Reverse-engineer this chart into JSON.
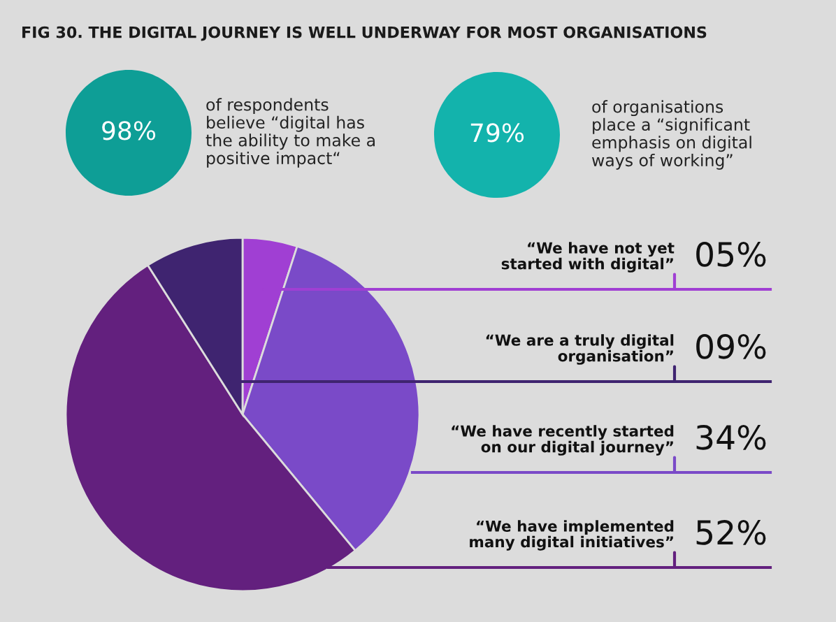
{
  "chart_data": [
    {
      "type": "other",
      "title": "FIG 30. THE DIGITAL JOURNEY IS WELL UNDERWAY FOR MOST ORGANISATIONS",
      "colors": [
        "#0e9e96",
        "#13b3ac"
      ],
      "annotations": [
        "98%",
        "of respondents\nbelieve “digital has\nthe ability to make a\npositive impact“",
        "79%",
        "of organisations\nplace a “significant\nemphasis on digital\nways of working”"
      ]
    },
    {
      "type": "pie",
      "categories": [
        "“We have not yet\nstarted with digital”",
        "“We have recently started\non our digital journey”",
        "“We have implemented\nmany digital initiatives”",
        "“We are a truly digital\norganisation”"
      ],
      "values": [
        5,
        34,
        52,
        9
      ],
      "value_labels": [
        "05%",
        "34%",
        "52%",
        "09%"
      ],
      "colors": [
        "#a03fd3",
        "#7a4ac8",
        "#63207e",
        "#3f2470"
      ]
    }
  ]
}
